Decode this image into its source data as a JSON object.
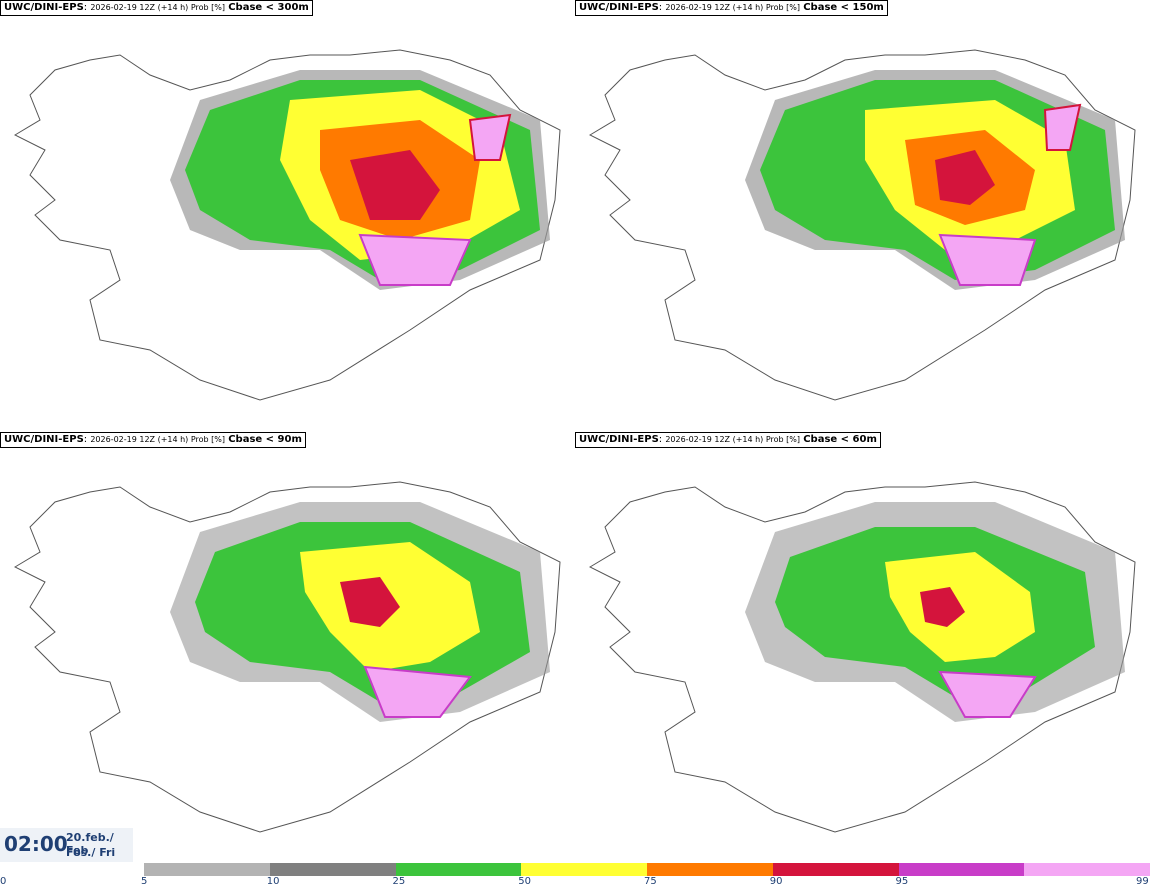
{
  "panels": [
    {
      "model": "UWC/DINI-EPS",
      "meta": "2026-02-19 12Z (+14 h) Prob [%]",
      "variable": "Cbase < 300m"
    },
    {
      "model": "UWC/DINI-EPS",
      "meta": "2026-02-19 12Z (+14 h) Prob [%]",
      "variable": "Cbase < 150m"
    },
    {
      "model": "UWC/DINI-EPS",
      "meta": "2026-02-19 12Z (+14 h) Prob [%]",
      "variable": "Cbase < 90m"
    },
    {
      "model": "UWC/DINI-EPS",
      "meta": "2026-02-19 12Z (+14 h) Prob [%]",
      "variable": "Cbase < 60m"
    }
  ],
  "time": {
    "clock": "02:00",
    "date_line": "20.feb./ Feb",
    "day_line": "Fös./ Fri"
  },
  "colorbar": {
    "ticks": [
      "0",
      "5",
      "10",
      "25",
      "50",
      "75",
      "90",
      "95",
      "99"
    ],
    "colors": [
      "#b3b3b3",
      "#7f7f7f",
      "#3cc43c",
      "#ffff33",
      "#ff7a00",
      "#d4143c",
      "#c83cc8",
      "#f4a6f4"
    ]
  }
}
